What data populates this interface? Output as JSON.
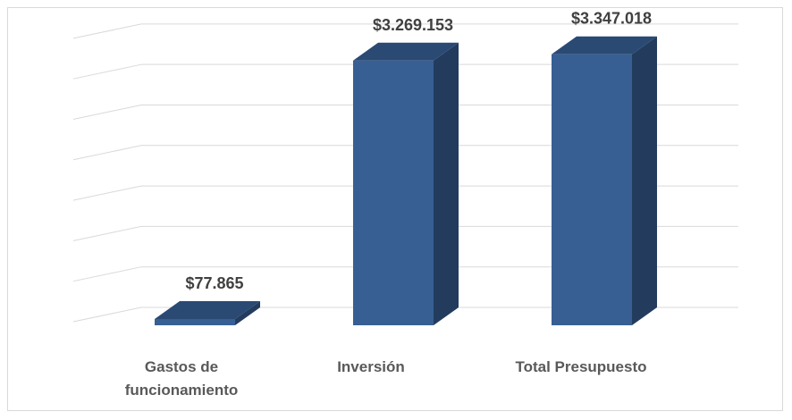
{
  "chart_data": {
    "type": "bar",
    "style": "3d-column",
    "categories": [
      "Gastos de\nfuncionamiento",
      "Inversión",
      "Total Presupuesto"
    ],
    "values": [
      77865,
      3269153,
      3347018
    ],
    "value_labels": [
      "$77.865",
      "$3.269.153",
      "$3.347.018"
    ],
    "title": "",
    "xlabel": "",
    "ylabel": "",
    "ylim": [
      0,
      4000000
    ],
    "grid": true,
    "legend": "none",
    "colors": {
      "bar_front": "#375f93",
      "bar_side": "#233c5e",
      "bar_top": "#2a4a74",
      "grid": "#d9d9d9"
    }
  }
}
